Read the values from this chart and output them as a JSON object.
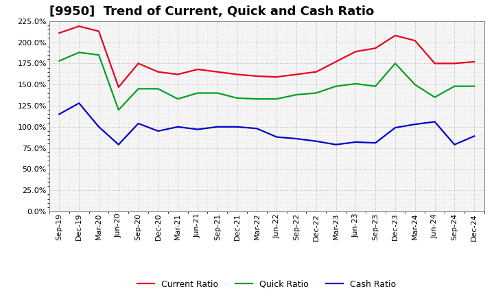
{
  "title": "[9950]  Trend of Current, Quick and Cash Ratio",
  "labels": [
    "Sep-19",
    "Dec-19",
    "Mar-20",
    "Jun-20",
    "Sep-20",
    "Dec-20",
    "Mar-21",
    "Jun-21",
    "Sep-21",
    "Dec-21",
    "Mar-22",
    "Jun-22",
    "Sep-22",
    "Dec-22",
    "Mar-23",
    "Jun-23",
    "Sep-23",
    "Dec-23",
    "Mar-24",
    "Jun-24",
    "Sep-24",
    "Dec-24"
  ],
  "current_ratio": [
    211,
    219,
    213,
    147,
    175,
    165,
    162,
    168,
    165,
    162,
    160,
    159,
    162,
    165,
    177,
    189,
    193,
    208,
    202,
    175,
    175,
    177
  ],
  "quick_ratio": [
    178,
    188,
    185,
    120,
    145,
    145,
    133,
    140,
    140,
    134,
    133,
    133,
    138,
    140,
    148,
    151,
    148,
    175,
    150,
    135,
    148,
    148
  ],
  "cash_ratio": [
    115,
    128,
    100,
    79,
    104,
    95,
    100,
    97,
    100,
    100,
    98,
    88,
    86,
    83,
    79,
    82,
    81,
    99,
    103,
    106,
    79,
    89
  ],
  "current_color": "#e8001c",
  "quick_color": "#00a020",
  "cash_color": "#0000cc",
  "bg_color": "#ffffff",
  "plot_bg_color": "#f5f5f5",
  "ylim": [
    0,
    225
  ],
  "yticks": [
    0,
    25,
    50,
    75,
    100,
    125,
    150,
    175,
    200,
    225
  ],
  "legend_labels": [
    "Current Ratio",
    "Quick Ratio",
    "Cash Ratio"
  ],
  "title_fontsize": 13,
  "tick_fontsize": 8,
  "legend_fontsize": 9
}
